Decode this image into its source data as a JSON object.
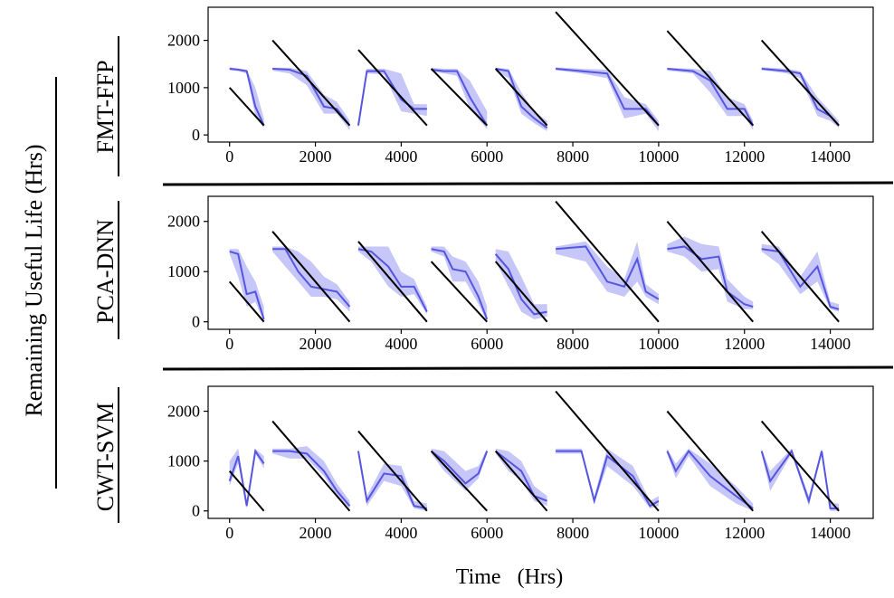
{
  "figure": {
    "ylabel": "Remaining Useful Life   (Hrs)",
    "xlabel": "Time   (Hrs)"
  },
  "colors": {
    "true_line": "#000000",
    "prediction_line": "#5555e0",
    "prediction_band": "#b3b3f5",
    "axes": "#000000"
  },
  "chart_data": [
    {
      "type": "line",
      "row_label": "FMT-FFP",
      "xlim": [
        -500,
        15000
      ],
      "ylim": [
        -150,
        2700
      ],
      "xticks": [
        0,
        2000,
        4000,
        6000,
        8000,
        10000,
        12000,
        14000
      ],
      "yticks": [
        0,
        1000,
        2000
      ],
      "true_rul": [
        [
          [
            0,
            1000
          ],
          [
            800,
            200
          ]
        ],
        [
          [
            1000,
            2000
          ],
          [
            2800,
            200
          ]
        ],
        [
          [
            3000,
            1800
          ],
          [
            4600,
            200
          ]
        ],
        [
          [
            4700,
            1400
          ],
          [
            6000,
            200
          ]
        ],
        [
          [
            6200,
            1400
          ],
          [
            7400,
            200
          ]
        ],
        [
          [
            7600,
            2600
          ],
          [
            10000,
            200
          ]
        ],
        [
          [
            10200,
            2200
          ],
          [
            12200,
            200
          ]
        ],
        [
          [
            12400,
            2000
          ],
          [
            14200,
            200
          ]
        ]
      ],
      "prediction": [
        [
          [
            0,
            1400,
            1370,
            1430
          ],
          [
            200,
            1380,
            1350,
            1410
          ],
          [
            400,
            1350,
            1300,
            1380
          ],
          [
            600,
            600,
            400,
            1000
          ],
          [
            800,
            200,
            150,
            350
          ]
        ],
        [
          [
            1000,
            1400,
            1360,
            1420
          ],
          [
            1400,
            1380,
            1300,
            1420
          ],
          [
            1800,
            1250,
            1050,
            1350
          ],
          [
            2200,
            600,
            450,
            850
          ],
          [
            2500,
            550,
            450,
            700
          ],
          [
            2800,
            200,
            100,
            300
          ]
        ],
        [
          [
            3000,
            200,
            150,
            280
          ],
          [
            3200,
            1350,
            1300,
            1400
          ],
          [
            3600,
            1350,
            1280,
            1400
          ],
          [
            4000,
            750,
            500,
            1300
          ],
          [
            4300,
            550,
            450,
            650
          ],
          [
            4600,
            550,
            400,
            650
          ]
        ],
        [
          [
            4700,
            1380,
            1350,
            1420
          ],
          [
            5000,
            1350,
            1300,
            1400
          ],
          [
            5300,
            1350,
            1250,
            1400
          ],
          [
            5600,
            800,
            550,
            1150
          ],
          [
            6000,
            200,
            120,
            500
          ]
        ],
        [
          [
            6200,
            1400,
            1350,
            1420
          ],
          [
            6500,
            1350,
            1200,
            1400
          ],
          [
            6800,
            600,
            450,
            900
          ],
          [
            7100,
            350,
            250,
            500
          ],
          [
            7400,
            150,
            80,
            300
          ]
        ],
        [
          [
            7600,
            1400,
            1370,
            1430
          ],
          [
            8200,
            1350,
            1300,
            1400
          ],
          [
            8800,
            1300,
            1200,
            1380
          ],
          [
            9200,
            550,
            350,
            800
          ],
          [
            9700,
            550,
            450,
            650
          ],
          [
            10000,
            200,
            80,
            300
          ]
        ],
        [
          [
            10200,
            1400,
            1360,
            1420
          ],
          [
            10800,
            1350,
            1300,
            1400
          ],
          [
            11200,
            1150,
            900,
            1350
          ],
          [
            11600,
            550,
            400,
            800
          ],
          [
            12000,
            550,
            400,
            650
          ],
          [
            12200,
            200,
            100,
            300
          ]
        ],
        [
          [
            12400,
            1400,
            1370,
            1430
          ],
          [
            13000,
            1350,
            1300,
            1400
          ],
          [
            13300,
            1300,
            1200,
            1350
          ],
          [
            13700,
            550,
            400,
            800
          ],
          [
            14000,
            400,
            300,
            500
          ],
          [
            14200,
            200,
            150,
            300
          ]
        ]
      ]
    },
    {
      "type": "line",
      "row_label": "PCA-DNN",
      "xlim": [
        -500,
        15000
      ],
      "ylim": [
        -150,
        2500
      ],
      "xticks": [
        0,
        2000,
        4000,
        6000,
        8000,
        10000,
        12000,
        14000
      ],
      "yticks": [
        0,
        1000,
        2000
      ],
      "true_rul": [
        [
          [
            0,
            800
          ],
          [
            800,
            0
          ]
        ],
        [
          [
            1000,
            1800
          ],
          [
            2800,
            0
          ]
        ],
        [
          [
            3000,
            1600
          ],
          [
            4600,
            0
          ]
        ],
        [
          [
            4700,
            1200
          ],
          [
            6000,
            0
          ]
        ],
        [
          [
            6200,
            1200
          ],
          [
            7400,
            0
          ]
        ],
        [
          [
            7600,
            2400
          ],
          [
            10000,
            0
          ]
        ],
        [
          [
            10200,
            2000
          ],
          [
            12200,
            0
          ]
        ],
        [
          [
            12400,
            1800
          ],
          [
            14200,
            0
          ]
        ]
      ],
      "prediction": [
        [
          [
            0,
            1400,
            1350,
            1450
          ],
          [
            200,
            1350,
            900,
            1450
          ],
          [
            400,
            550,
            300,
            1100
          ],
          [
            600,
            600,
            400,
            800
          ],
          [
            800,
            50,
            0,
            300
          ]
        ],
        [
          [
            1000,
            1450,
            1400,
            1500
          ],
          [
            1300,
            1450,
            1100,
            1500
          ],
          [
            1600,
            1000,
            800,
            1400
          ],
          [
            1900,
            700,
            500,
            1200
          ],
          [
            2200,
            650,
            500,
            900
          ],
          [
            2500,
            600,
            450,
            750
          ],
          [
            2800,
            300,
            200,
            400
          ]
        ],
        [
          [
            3000,
            1450,
            1400,
            1500
          ],
          [
            3300,
            1400,
            1200,
            1500
          ],
          [
            3700,
            1100,
            700,
            1500
          ],
          [
            4000,
            700,
            500,
            1000
          ],
          [
            4300,
            700,
            550,
            850
          ],
          [
            4600,
            200,
            150,
            300
          ]
        ],
        [
          [
            4700,
            1450,
            1400,
            1500
          ],
          [
            5000,
            1400,
            1300,
            1500
          ],
          [
            5200,
            1050,
            800,
            1300
          ],
          [
            5500,
            1000,
            800,
            1200
          ],
          [
            5800,
            500,
            350,
            800
          ],
          [
            6000,
            50,
            0,
            300
          ]
        ],
        [
          [
            6200,
            1350,
            1200,
            1450
          ],
          [
            6500,
            1050,
            700,
            1400
          ],
          [
            6800,
            450,
            200,
            900
          ],
          [
            7100,
            150,
            50,
            350
          ],
          [
            7400,
            200,
            100,
            350
          ]
        ],
        [
          [
            7600,
            1450,
            1350,
            1500
          ],
          [
            8300,
            1500,
            1200,
            1600
          ],
          [
            8800,
            800,
            600,
            1100
          ],
          [
            9200,
            700,
            500,
            850
          ],
          [
            9500,
            1250,
            800,
            1600
          ],
          [
            9700,
            600,
            500,
            750
          ],
          [
            10000,
            450,
            350,
            550
          ]
        ],
        [
          [
            10200,
            1450,
            1400,
            1550
          ],
          [
            10600,
            1500,
            1300,
            1700
          ],
          [
            11000,
            1250,
            1000,
            1550
          ],
          [
            11400,
            1300,
            1050,
            1500
          ],
          [
            11600,
            600,
            400,
            850
          ],
          [
            12000,
            350,
            250,
            500
          ],
          [
            12200,
            300,
            250,
            400
          ]
        ],
        [
          [
            12400,
            1450,
            1400,
            1550
          ],
          [
            12800,
            1400,
            1150,
            1500
          ],
          [
            13300,
            700,
            550,
            900
          ],
          [
            13700,
            1100,
            800,
            1400
          ],
          [
            14000,
            300,
            250,
            400
          ],
          [
            14200,
            250,
            200,
            350
          ]
        ]
      ]
    },
    {
      "type": "line",
      "row_label": "CWT-SVM",
      "xlim": [
        -500,
        15000
      ],
      "ylim": [
        -150,
        2500
      ],
      "xticks": [
        0,
        2000,
        4000,
        6000,
        8000,
        10000,
        12000,
        14000
      ],
      "yticks": [
        0,
        1000,
        2000
      ],
      "true_rul": [
        [
          [
            0,
            800
          ],
          [
            800,
            0
          ]
        ],
        [
          [
            1000,
            1800
          ],
          [
            2800,
            0
          ]
        ],
        [
          [
            3000,
            1600
          ],
          [
            4600,
            0
          ]
        ],
        [
          [
            4700,
            1200
          ],
          [
            6000,
            0
          ]
        ],
        [
          [
            6200,
            1200
          ],
          [
            7400,
            0
          ]
        ],
        [
          [
            7600,
            2400
          ],
          [
            10000,
            0
          ]
        ],
        [
          [
            10200,
            2000
          ],
          [
            12200,
            0
          ]
        ],
        [
          [
            12400,
            1800
          ],
          [
            14200,
            0
          ]
        ]
      ],
      "prediction": [
        [
          [
            0,
            600,
            500,
            1000
          ],
          [
            200,
            1100,
            950,
            1250
          ],
          [
            400,
            100,
            50,
            200
          ],
          [
            600,
            1200,
            1150,
            1250
          ],
          [
            800,
            950,
            850,
            1100
          ]
        ],
        [
          [
            1000,
            1200,
            1150,
            1250
          ],
          [
            1400,
            1200,
            1050,
            1250
          ],
          [
            1800,
            1150,
            1050,
            1300
          ],
          [
            2200,
            800,
            700,
            1000
          ],
          [
            2500,
            400,
            300,
            550
          ],
          [
            2800,
            100,
            50,
            200
          ]
        ],
        [
          [
            3000,
            1200,
            1150,
            1250
          ],
          [
            3200,
            200,
            100,
            300
          ],
          [
            3600,
            750,
            600,
            950
          ],
          [
            4000,
            700,
            500,
            900
          ],
          [
            4300,
            100,
            50,
            200
          ],
          [
            4600,
            50,
            0,
            150
          ]
        ],
        [
          [
            4700,
            1200,
            1150,
            1250
          ],
          [
            5000,
            1000,
            800,
            1200
          ],
          [
            5500,
            550,
            400,
            800
          ],
          [
            5800,
            750,
            650,
            900
          ],
          [
            6000,
            1200,
            1150,
            1250
          ]
        ],
        [
          [
            6200,
            1200,
            1150,
            1250
          ],
          [
            6500,
            1000,
            800,
            1200
          ],
          [
            6800,
            800,
            600,
            1000
          ],
          [
            7100,
            300,
            200,
            500
          ],
          [
            7400,
            200,
            100,
            300
          ]
        ],
        [
          [
            7600,
            1200,
            1150,
            1250
          ],
          [
            8200,
            1200,
            1150,
            1250
          ],
          [
            8500,
            200,
            150,
            300
          ],
          [
            8800,
            1100,
            900,
            1250
          ],
          [
            9400,
            700,
            500,
            900
          ],
          [
            9800,
            100,
            50,
            200
          ],
          [
            10000,
            200,
            100,
            300
          ]
        ],
        [
          [
            10200,
            1200,
            1150,
            1250
          ],
          [
            10400,
            800,
            650,
            950
          ],
          [
            10700,
            1200,
            1100,
            1250
          ],
          [
            11200,
            700,
            500,
            950
          ],
          [
            11800,
            300,
            150,
            500
          ],
          [
            12200,
            50,
            0,
            150
          ]
        ],
        [
          [
            12400,
            1200,
            1150,
            1250
          ],
          [
            12600,
            600,
            400,
            800
          ],
          [
            13100,
            1200,
            1150,
            1250
          ],
          [
            13500,
            200,
            100,
            300
          ],
          [
            13800,
            1200,
            1150,
            1250
          ],
          [
            14000,
            50,
            0,
            150
          ],
          [
            14200,
            50,
            0,
            150
          ]
        ]
      ]
    }
  ]
}
